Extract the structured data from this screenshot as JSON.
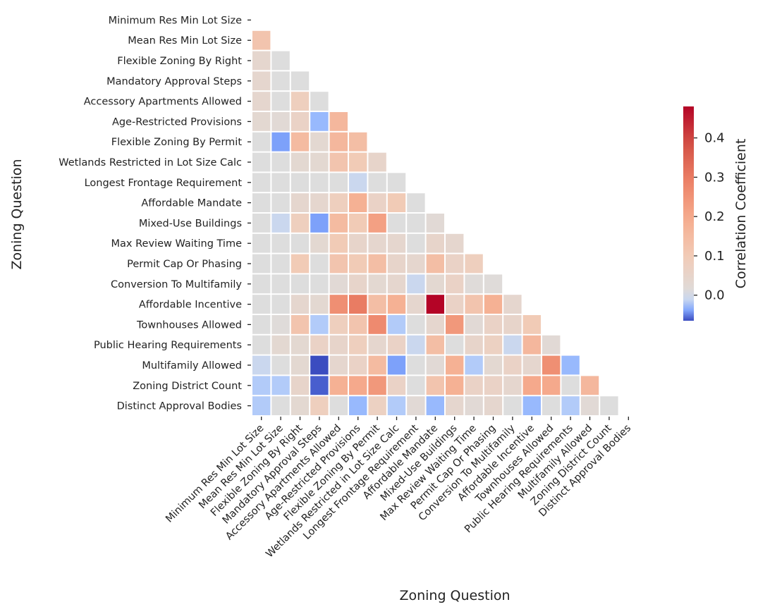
{
  "chart_data": {
    "type": "heatmap",
    "title": "",
    "xlabel": "Zoning Question",
    "ylabel": "Zoning Question",
    "mask": "upper-triangle-and-diagonal",
    "labels": [
      "Minimum Res Min Lot Size",
      "Mean Res Min Lot Size",
      "Flexible Zoning By Right",
      "Mandatory Approval Steps",
      "Accessory Apartments Allowed",
      "Age-Restricted Provisions",
      "Flexible Zoning By Permit",
      "Wetlands Restricted in Lot Size Calc",
      "Longest Frontage Requirement",
      "Affordable Mandate",
      "Mixed-Use Buildings",
      "Max Review Waiting Time",
      "Permit Cap Or Phasing",
      "Conversion To Multifamily",
      "Affordable Incentive",
      "Townhouses Allowed",
      "Public Hearing Requirements",
      "Multifamily Allowed",
      "Zoning District Count",
      "Distinct Approval Bodies"
    ],
    "values": [
      [],
      [
        0.12
      ],
      [
        0.04,
        0.0
      ],
      [
        0.04,
        0.0,
        0.0
      ],
      [
        0.04,
        0.0,
        0.08,
        0.0
      ],
      [
        0.03,
        0.02,
        0.06,
        -0.03,
        0.16
      ],
      [
        0.0,
        -0.04,
        0.15,
        0.03,
        0.16,
        0.14
      ],
      [
        0.0,
        0.0,
        0.03,
        0.03,
        0.12,
        0.1,
        0.05
      ],
      [
        0.0,
        0.0,
        0.0,
        0.0,
        0.0,
        -0.01,
        0.0,
        0.0
      ],
      [
        0.0,
        0.0,
        0.04,
        0.04,
        0.08,
        0.18,
        0.06,
        0.1,
        0.0
      ],
      [
        0.0,
        -0.01,
        0.08,
        -0.04,
        0.15,
        0.1,
        0.22,
        0.0,
        0.0,
        0.02
      ],
      [
        0.0,
        0.0,
        0.0,
        0.03,
        0.1,
        0.05,
        0.04,
        0.04,
        0.0,
        0.05,
        0.04
      ],
      [
        0.0,
        0.0,
        0.1,
        0.0,
        0.12,
        0.1,
        0.14,
        0.05,
        0.04,
        0.14,
        0.06,
        0.08
      ],
      [
        0.0,
        0.0,
        0.0,
        0.0,
        0.02,
        0.05,
        0.03,
        0.04,
        -0.01,
        0.03,
        0.06,
        0.01,
        0.01
      ],
      [
        0.0,
        0.0,
        0.04,
        0.03,
        0.26,
        0.3,
        0.14,
        0.18,
        0.04,
        0.48,
        0.06,
        0.12,
        0.18,
        0.04
      ],
      [
        0.0,
        0.01,
        0.12,
        -0.02,
        0.08,
        0.12,
        0.27,
        -0.02,
        0.0,
        0.04,
        0.24,
        0.02,
        0.06,
        0.05,
        0.1
      ],
      [
        0.0,
        0.03,
        0.03,
        0.06,
        0.05,
        0.08,
        0.04,
        0.06,
        -0.01,
        0.14,
        0.0,
        0.05,
        0.07,
        -0.01,
        0.16,
        0.02
      ],
      [
        -0.01,
        0.0,
        0.03,
        -0.07,
        0.04,
        0.06,
        0.15,
        -0.04,
        0.0,
        0.02,
        0.18,
        -0.02,
        0.03,
        0.06,
        0.04,
        0.26,
        -0.03
      ],
      [
        -0.02,
        -0.02,
        0.05,
        -0.06,
        0.18,
        0.2,
        0.24,
        0.06,
        0.0,
        0.12,
        0.18,
        0.06,
        0.06,
        0.04,
        0.2,
        0.2,
        0.0,
        0.16
      ],
      [
        -0.02,
        0.0,
        0.03,
        0.08,
        0.0,
        -0.03,
        0.07,
        -0.02,
        0.02,
        -0.03,
        0.04,
        0.02,
        0.04,
        0.0,
        -0.03,
        0.0,
        -0.02,
        0.02,
        0.0
      ]
    ],
    "colorbar": {
      "label": "Correlation Coefficient",
      "min": -0.065,
      "max": 0.48,
      "ticks": [
        "0.0",
        "0.1",
        "0.2",
        "0.3",
        "0.4"
      ],
      "colormap": "coolwarm"
    }
  }
}
